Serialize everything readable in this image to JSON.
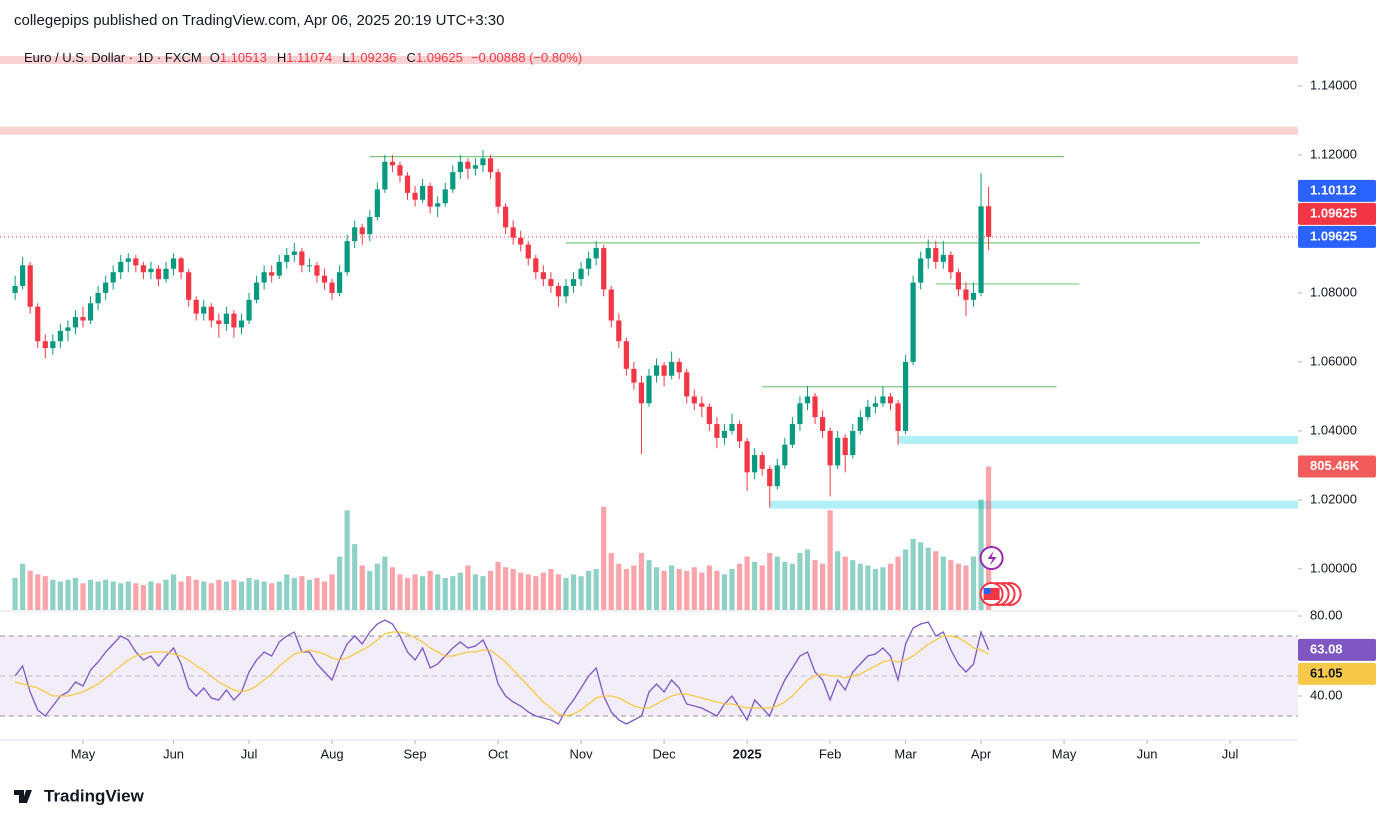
{
  "header": {
    "publisher": "collegepips published on TradingView.com, Apr 06, 2025 20:19 UTC+3:30"
  },
  "chart_data": {
    "type": "candlestick",
    "title": "Euro / U.S. Dollar · 1D · FXCM",
    "ohlc_prefixes": [
      "O",
      "H",
      "L",
      "C"
    ],
    "change_label": "−0.00888 (−0.80%)",
    "colors": {
      "up": "#089981",
      "down": "#f23645"
    },
    "candles": [
      [
        1.08,
        1.085,
        1.078,
        1.082
      ],
      [
        1.082,
        1.0905,
        1.081,
        1.088
      ],
      [
        1.088,
        1.089,
        1.074,
        1.076
      ],
      [
        1.076,
        1.077,
        1.064,
        1.066
      ],
      [
        1.066,
        1.068,
        1.061,
        1.064
      ],
      [
        1.064,
        1.068,
        1.062,
        1.066
      ],
      [
        1.066,
        1.071,
        1.064,
        1.069
      ],
      [
        1.069,
        1.072,
        1.066,
        1.07
      ],
      [
        1.07,
        1.075,
        1.068,
        1.073
      ],
      [
        1.073,
        1.076,
        1.07,
        1.072
      ],
      [
        1.072,
        1.079,
        1.071,
        1.077
      ],
      [
        1.077,
        1.082,
        1.075,
        1.08
      ],
      [
        1.08,
        1.085,
        1.078,
        1.083
      ],
      [
        1.083,
        1.088,
        1.081,
        1.086
      ],
      [
        1.086,
        1.091,
        1.084,
        1.089
      ],
      [
        1.089,
        1.0915,
        1.086,
        1.09
      ],
      [
        1.09,
        1.091,
        1.086,
        1.088
      ],
      [
        1.088,
        1.089,
        1.084,
        1.086
      ],
      [
        1.086,
        1.089,
        1.084,
        1.087
      ],
      [
        1.087,
        1.088,
        1.082,
        1.084
      ],
      [
        1.084,
        1.089,
        1.083,
        1.087
      ],
      [
        1.087,
        1.0915,
        1.085,
        1.09
      ],
      [
        1.09,
        1.0905,
        1.084,
        1.086
      ],
      [
        1.086,
        1.087,
        1.076,
        1.078
      ],
      [
        1.078,
        1.079,
        1.072,
        1.074
      ],
      [
        1.074,
        1.078,
        1.072,
        1.076
      ],
      [
        1.076,
        1.077,
        1.07,
        1.072
      ],
      [
        1.072,
        1.074,
        1.067,
        1.071
      ],
      [
        1.071,
        1.076,
        1.069,
        1.074
      ],
      [
        1.074,
        1.075,
        1.067,
        1.07
      ],
      [
        1.07,
        1.074,
        1.068,
        1.072
      ],
      [
        1.072,
        1.08,
        1.071,
        1.078
      ],
      [
        1.078,
        1.085,
        1.077,
        1.083
      ],
      [
        1.083,
        1.088,
        1.081,
        1.086
      ],
      [
        1.086,
        1.088,
        1.083,
        1.085
      ],
      [
        1.085,
        1.091,
        1.084,
        1.089
      ],
      [
        1.089,
        1.093,
        1.087,
        1.091
      ],
      [
        1.091,
        1.0945,
        1.089,
        1.092
      ],
      [
        1.092,
        1.093,
        1.086,
        1.088
      ],
      [
        1.088,
        1.09,
        1.086,
        1.088
      ],
      [
        1.088,
        1.089,
        1.083,
        1.085
      ],
      [
        1.085,
        1.087,
        1.081,
        1.083
      ],
      [
        1.083,
        1.084,
        1.078,
        1.08
      ],
      [
        1.08,
        1.088,
        1.079,
        1.086
      ],
      [
        1.086,
        1.097,
        1.085,
        1.095
      ],
      [
        1.095,
        1.101,
        1.093,
        1.099
      ],
      [
        1.099,
        1.1,
        1.094,
        1.097
      ],
      [
        1.097,
        1.104,
        1.095,
        1.102
      ],
      [
        1.102,
        1.112,
        1.101,
        1.11
      ],
      [
        1.11,
        1.12,
        1.109,
        1.118
      ],
      [
        1.118,
        1.12,
        1.115,
        1.117
      ],
      [
        1.117,
        1.118,
        1.112,
        1.114
      ],
      [
        1.114,
        1.115,
        1.107,
        1.109
      ],
      [
        1.109,
        1.111,
        1.105,
        1.107
      ],
      [
        1.107,
        1.113,
        1.106,
        1.111
      ],
      [
        1.111,
        1.112,
        1.103,
        1.105
      ],
      [
        1.105,
        1.108,
        1.102,
        1.106
      ],
      [
        1.106,
        1.112,
        1.105,
        1.11
      ],
      [
        1.11,
        1.117,
        1.109,
        1.115
      ],
      [
        1.115,
        1.12,
        1.113,
        1.118
      ],
      [
        1.118,
        1.119,
        1.113,
        1.116
      ],
      [
        1.116,
        1.119,
        1.114,
        1.117
      ],
      [
        1.117,
        1.1214,
        1.115,
        1.119
      ],
      [
        1.119,
        1.12,
        1.113,
        1.115
      ],
      [
        1.115,
        1.116,
        1.103,
        1.105
      ],
      [
        1.105,
        1.106,
        1.097,
        1.099
      ],
      [
        1.099,
        1.101,
        1.094,
        1.096
      ],
      [
        1.096,
        1.098,
        1.092,
        1.094
      ],
      [
        1.094,
        1.095,
        1.088,
        1.09
      ],
      [
        1.09,
        1.091,
        1.084,
        1.086
      ],
      [
        1.086,
        1.088,
        1.082,
        1.084
      ],
      [
        1.084,
        1.086,
        1.08,
        1.082
      ],
      [
        1.082,
        1.083,
        1.076,
        1.079
      ],
      [
        1.079,
        1.084,
        1.077,
        1.082
      ],
      [
        1.082,
        1.086,
        1.08,
        1.084
      ],
      [
        1.084,
        1.089,
        1.082,
        1.087
      ],
      [
        1.087,
        1.092,
        1.085,
        1.09
      ],
      [
        1.09,
        1.095,
        1.088,
        1.093
      ],
      [
        1.093,
        1.094,
        1.079,
        1.081
      ],
      [
        1.081,
        1.082,
        1.07,
        1.072
      ],
      [
        1.072,
        1.074,
        1.064,
        1.066
      ],
      [
        1.066,
        1.067,
        1.056,
        1.058
      ],
      [
        1.058,
        1.06,
        1.052,
        1.054
      ],
      [
        1.054,
        1.056,
        1.0333,
        1.048
      ],
      [
        1.048,
        1.058,
        1.047,
        1.056
      ],
      [
        1.056,
        1.061,
        1.054,
        1.059
      ],
      [
        1.059,
        1.06,
        1.053,
        1.056
      ],
      [
        1.056,
        1.063,
        1.055,
        1.06
      ],
      [
        1.06,
        1.061,
        1.055,
        1.057
      ],
      [
        1.057,
        1.058,
        1.048,
        1.05
      ],
      [
        1.05,
        1.052,
        1.046,
        1.048
      ],
      [
        1.048,
        1.05,
        1.044,
        1.047
      ],
      [
        1.047,
        1.048,
        1.04,
        1.042
      ],
      [
        1.042,
        1.044,
        1.035,
        1.038
      ],
      [
        1.038,
        1.042,
        1.036,
        1.04
      ],
      [
        1.04,
        1.045,
        1.039,
        1.042
      ],
      [
        1.042,
        1.043,
        1.035,
        1.037
      ],
      [
        1.037,
        1.038,
        1.0226,
        1.028
      ],
      [
        1.028,
        1.035,
        1.026,
        1.033
      ],
      [
        1.033,
        1.034,
        1.027,
        1.029
      ],
      [
        1.029,
        1.03,
        1.0178,
        1.024
      ],
      [
        1.024,
        1.032,
        1.023,
        1.03
      ],
      [
        1.03,
        1.038,
        1.029,
        1.036
      ],
      [
        1.036,
        1.044,
        1.035,
        1.042
      ],
      [
        1.042,
        1.05,
        1.04,
        1.048
      ],
      [
        1.048,
        1.053,
        1.046,
        1.05
      ],
      [
        1.05,
        1.051,
        1.042,
        1.044
      ],
      [
        1.044,
        1.046,
        1.038,
        1.04
      ],
      [
        1.04,
        1.041,
        1.021,
        1.03
      ],
      [
        1.03,
        1.04,
        1.029,
        1.038
      ],
      [
        1.038,
        1.039,
        1.028,
        1.033
      ],
      [
        1.033,
        1.042,
        1.032,
        1.04
      ],
      [
        1.04,
        1.046,
        1.039,
        1.044
      ],
      [
        1.044,
        1.049,
        1.043,
        1.047
      ],
      [
        1.047,
        1.05,
        1.045,
        1.048
      ],
      [
        1.048,
        1.053,
        1.047,
        1.05
      ],
      [
        1.05,
        1.051,
        1.046,
        1.048
      ],
      [
        1.048,
        1.049,
        1.036,
        1.04
      ],
      [
        1.04,
        1.062,
        1.039,
        1.06
      ],
      [
        1.06,
        1.085,
        1.059,
        1.083
      ],
      [
        1.083,
        1.092,
        1.081,
        1.09
      ],
      [
        1.09,
        1.0955,
        1.087,
        1.093
      ],
      [
        1.093,
        1.095,
        1.087,
        1.089
      ],
      [
        1.089,
        1.095,
        1.087,
        1.091
      ],
      [
        1.091,
        1.092,
        1.084,
        1.086
      ],
      [
        1.086,
        1.087,
        1.079,
        1.081
      ],
      [
        1.081,
        1.083,
        1.0733,
        1.078
      ],
      [
        1.078,
        1.083,
        1.076,
        1.08
      ],
      [
        1.08,
        1.1147,
        1.079,
        1.1051
      ],
      [
        1.10513,
        1.11074,
        1.09236,
        1.09625
      ]
    ],
    "ylim": [
      0.9881,
      1.1533
    ],
    "yticks": [
      {
        "value": 1.0,
        "label": "1.00000"
      },
      {
        "value": 1.02,
        "label": "1.02000"
      },
      {
        "value": 1.04,
        "label": "1.04000"
      },
      {
        "value": 1.06,
        "label": "1.06000"
      },
      {
        "value": 1.08,
        "label": "1.08000"
      },
      {
        "value": 1.12,
        "label": "1.12000"
      },
      {
        "value": 1.14,
        "label": "1.14000"
      }
    ],
    "xlim": [
      -2,
      170
    ],
    "xticks": [
      {
        "value": 9,
        "label": "May"
      },
      {
        "value": 21,
        "label": "Jun"
      },
      {
        "value": 31,
        "label": "Jul"
      },
      {
        "value": 42,
        "label": "Aug"
      },
      {
        "value": 53,
        "label": "Sep"
      },
      {
        "value": 64,
        "label": "Oct"
      },
      {
        "value": 75,
        "label": "Nov"
      },
      {
        "value": 86,
        "label": "Dec"
      },
      {
        "value": 97,
        "label": "2025",
        "bold": true
      },
      {
        "value": 108,
        "label": "Feb"
      },
      {
        "value": 118,
        "label": "Mar"
      },
      {
        "value": 128,
        "label": "Apr"
      },
      {
        "value": 139,
        "label": "May"
      },
      {
        "value": 150,
        "label": "Jun"
      },
      {
        "value": 161,
        "label": "Jul"
      }
    ],
    "levels": [
      {
        "price": 1.1475,
        "from": -2,
        "to": 170,
        "style": "band",
        "color": "#f9d3d3"
      },
      {
        "price": 1.127,
        "from": -2,
        "to": 170,
        "style": "band",
        "color": "#f9d3d3"
      },
      {
        "price": 1.1195,
        "from": 47,
        "to": 139,
        "style": "line",
        "color": "#81c784"
      },
      {
        "price": 1.0945,
        "from": 73,
        "to": 157,
        "style": "line",
        "color": "#81c784"
      },
      {
        "price": 1.0826,
        "from": 122,
        "to": 141,
        "style": "line",
        "color": "#81c784"
      },
      {
        "price": 1.0528,
        "from": 99,
        "to": 138,
        "style": "line",
        "color": "#81c784"
      },
      {
        "price": 1.0374,
        "from": 117,
        "to": 170,
        "style": "band",
        "color": "#b2f0f7"
      },
      {
        "price": 1.0186,
        "from": 100,
        "to": 170,
        "style": "band",
        "color": "#b2f0f7"
      }
    ],
    "price_tags": [
      {
        "value": 1.10112,
        "color": "#2962ff"
      }
    ],
    "volume": {
      "values": [
        180,
        260,
        220,
        200,
        190,
        170,
        160,
        170,
        180,
        150,
        170,
        160,
        170,
        160,
        150,
        160,
        150,
        140,
        160,
        150,
        170,
        200,
        160,
        190,
        170,
        160,
        150,
        170,
        160,
        170,
        160,
        180,
        170,
        160,
        150,
        160,
        200,
        180,
        190,
        170,
        180,
        160,
        200,
        300,
        560,
        370,
        250,
        220,
        260,
        300,
        240,
        200,
        180,
        200,
        190,
        220,
        200,
        180,
        190,
        210,
        250,
        200,
        190,
        220,
        270,
        240,
        230,
        210,
        200,
        190,
        210,
        230,
        200,
        180,
        200,
        190,
        220,
        230,
        580,
        320,
        260,
        230,
        250,
        320,
        280,
        240,
        220,
        250,
        230,
        220,
        240,
        210,
        250,
        220,
        200,
        230,
        260,
        300,
        270,
        250,
        320,
        300,
        270,
        260,
        320,
        340,
        280,
        260,
        560,
        330,
        300,
        280,
        260,
        250,
        230,
        240,
        260,
        300,
        340,
        400,
        380,
        350,
        330,
        300,
        280,
        260,
        250,
        300,
        620,
        805.46
      ],
      "value_labels": {
        "129": "805.46K"
      },
      "ylim": [
        0,
        3200
      ]
    },
    "rsi": {
      "ylim": [
        18,
        82
      ],
      "yticks": [
        {
          "value": 40,
          "label": "40.00"
        },
        {
          "value": 80,
          "label": "80.00"
        }
      ],
      "bands": [
        30,
        50,
        70
      ],
      "series": [
        {
          "color": "#7e57c2",
          "values": [
            50,
            55,
            42,
            33,
            30,
            35,
            40,
            42,
            47,
            45,
            53,
            57,
            62,
            66,
            70,
            68,
            62,
            58,
            60,
            55,
            60,
            64,
            56,
            44,
            40,
            44,
            39,
            38,
            43,
            38,
            42,
            52,
            58,
            62,
            60,
            67,
            70,
            72,
            62,
            62,
            56,
            52,
            48,
            58,
            66,
            70,
            66,
            72,
            76,
            78,
            76,
            70,
            62,
            58,
            64,
            54,
            56,
            60,
            64,
            67,
            64,
            65,
            68,
            60,
            46,
            40,
            37,
            35,
            32,
            30,
            29,
            28,
            26,
            33,
            38,
            44,
            50,
            54,
            40,
            32,
            28,
            26,
            28,
            30,
            42,
            46,
            42,
            48,
            44,
            36,
            35,
            34,
            32,
            30,
            36,
            40,
            34,
            28,
            38,
            34,
            30,
            40,
            48,
            54,
            60,
            62,
            52,
            48,
            38,
            48,
            43,
            52,
            56,
            60,
            61,
            64,
            60,
            48,
            66,
            74,
            76,
            77,
            70,
            72,
            63,
            56,
            52,
            56,
            72,
            63.08
          ]
        },
        {
          "color": "#f7c948",
          "values": [
            47,
            46,
            45,
            44,
            42,
            40,
            40,
            40,
            41,
            42,
            44,
            46,
            49,
            52,
            55,
            58,
            60,
            61,
            62,
            62,
            62,
            61,
            60,
            58,
            55,
            53,
            50,
            47,
            45,
            43,
            42,
            43,
            45,
            48,
            51,
            55,
            58,
            61,
            62,
            63,
            62,
            61,
            59,
            58,
            59,
            61,
            63,
            65,
            68,
            71,
            72,
            72,
            71,
            69,
            67,
            64,
            62,
            60,
            60,
            61,
            62,
            62,
            63,
            63,
            60,
            57,
            53,
            49,
            45,
            41,
            37,
            34,
            31,
            30,
            31,
            33,
            36,
            39,
            40,
            40,
            39,
            37,
            35,
            34,
            34,
            36,
            38,
            40,
            41,
            41,
            40,
            39,
            38,
            37,
            36,
            36,
            35,
            34,
            34,
            34,
            34,
            35,
            37,
            40,
            44,
            48,
            50,
            51,
            50,
            50,
            49,
            50,
            51,
            53,
            55,
            57,
            58,
            57,
            58,
            60,
            63,
            66,
            68,
            70,
            70,
            69,
            67,
            64,
            63,
            61.05
          ]
        }
      ]
    }
  },
  "footer": {
    "brand": "TradingView"
  }
}
